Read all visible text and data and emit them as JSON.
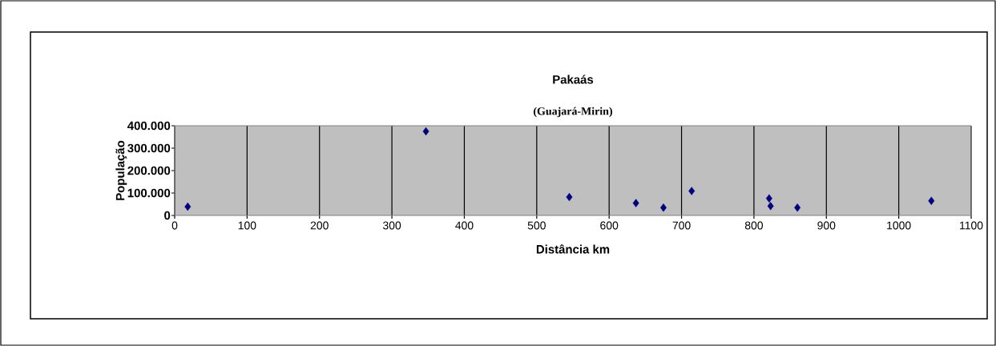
{
  "chart_data": {
    "type": "scatter",
    "title": "Pakaás",
    "subtitle": "(Guajará-Mirin)",
    "xlabel": "Distância km",
    "ylabel": "População",
    "x": [
      18,
      347,
      545,
      637,
      675,
      714,
      821,
      823,
      860,
      1045
    ],
    "values": [
      39000,
      375000,
      82000,
      55000,
      35000,
      109000,
      76000,
      42000,
      35000,
      65000
    ],
    "color": "#000080",
    "marker": "diamond",
    "xlim": [
      0,
      1100
    ],
    "xticks": [
      0,
      100,
      200,
      300,
      400,
      500,
      600,
      700,
      800,
      900,
      1000,
      1100
    ],
    "ylim": [
      0,
      400000
    ],
    "yticks": [
      {
        "value": 0,
        "label": "0"
      },
      {
        "value": 100000,
        "label": "100.000"
      },
      {
        "value": 200000,
        "label": "200.000"
      },
      {
        "value": 300000,
        "label": "300.000"
      },
      {
        "value": 400000,
        "label": "400.000"
      }
    ],
    "grid": "x"
  }
}
